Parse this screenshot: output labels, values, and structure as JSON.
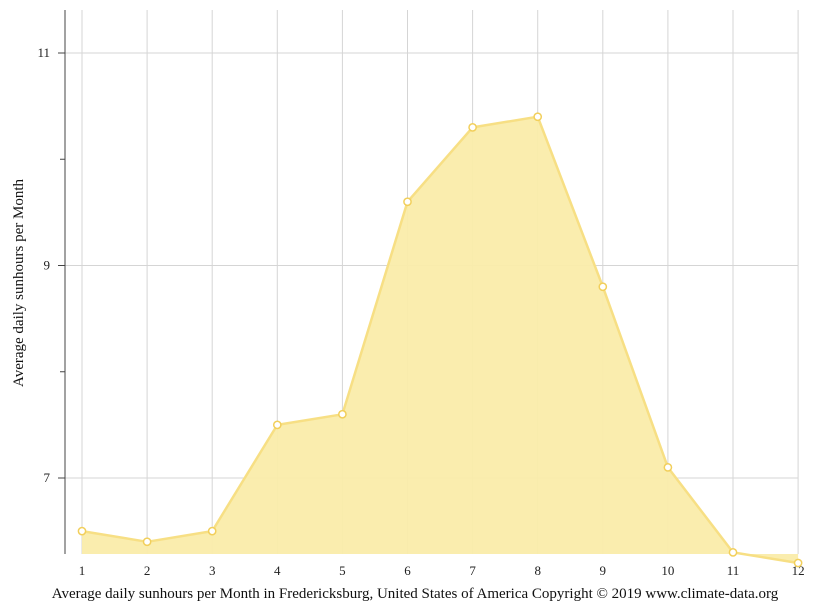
{
  "chart_data": {
    "type": "area",
    "title": "",
    "xlabel": "Average daily sunhours per Month in Fredericksburg, United States of America Copyright © 2019 www.climate-data.org",
    "ylabel": "Average daily sunhours per Month",
    "categories": [
      "1",
      "2",
      "3",
      "4",
      "5",
      "6",
      "7",
      "8",
      "9",
      "10",
      "11",
      "12"
    ],
    "values": [
      6.5,
      6.4,
      6.5,
      7.5,
      7.6,
      9.6,
      10.3,
      10.4,
      8.8,
      7.1,
      6.3,
      6.2
    ],
    "ylim": [
      6.2,
      11.4
    ],
    "yticks_labeled": [
      7,
      9,
      11
    ],
    "yticks_minor": [
      8,
      10
    ],
    "grid": true,
    "legend": "none",
    "colors": {
      "fill": "#faecaa",
      "line": "#f7df84",
      "marker_stroke": "#f2cf5b",
      "marker_fill": "#ffffff",
      "grid": "#d5d5d5",
      "axis": "#444444"
    }
  }
}
